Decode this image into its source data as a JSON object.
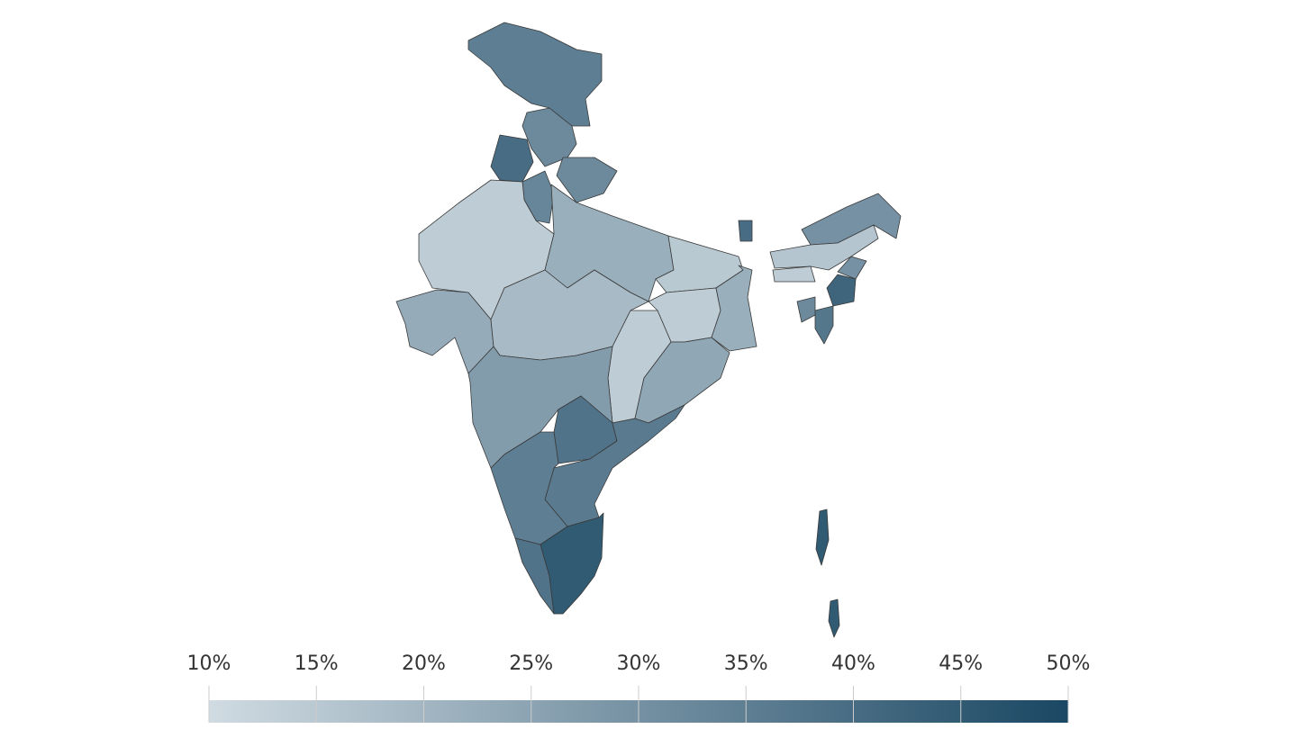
{
  "chart_data": {
    "type": "choropleth",
    "values": [
      35,
      32,
      40,
      32,
      33,
      14,
      22,
      15,
      23,
      19,
      14,
      22,
      14,
      24,
      27,
      38,
      36,
      35,
      38,
      45,
      40,
      30,
      16,
      14,
      30,
      42,
      37,
      32,
      45,
      45
    ],
    "colorscale": [
      "#d0dbe2",
      "#1a4763"
    ],
    "clim": [
      10,
      50
    ],
    "cticks": [
      {
        "value": 10,
        "label": "10%"
      },
      {
        "value": 15,
        "label": "15%"
      },
      {
        "value": 20,
        "label": "20%"
      },
      {
        "value": 25,
        "label": "25%"
      },
      {
        "value": 30,
        "label": "30%"
      },
      {
        "value": 35,
        "label": "35%"
      },
      {
        "value": 40,
        "label": "40%"
      },
      {
        "value": 45,
        "label": "45%"
      },
      {
        "value": 50,
        "label": "50%"
      }
    ]
  }
}
